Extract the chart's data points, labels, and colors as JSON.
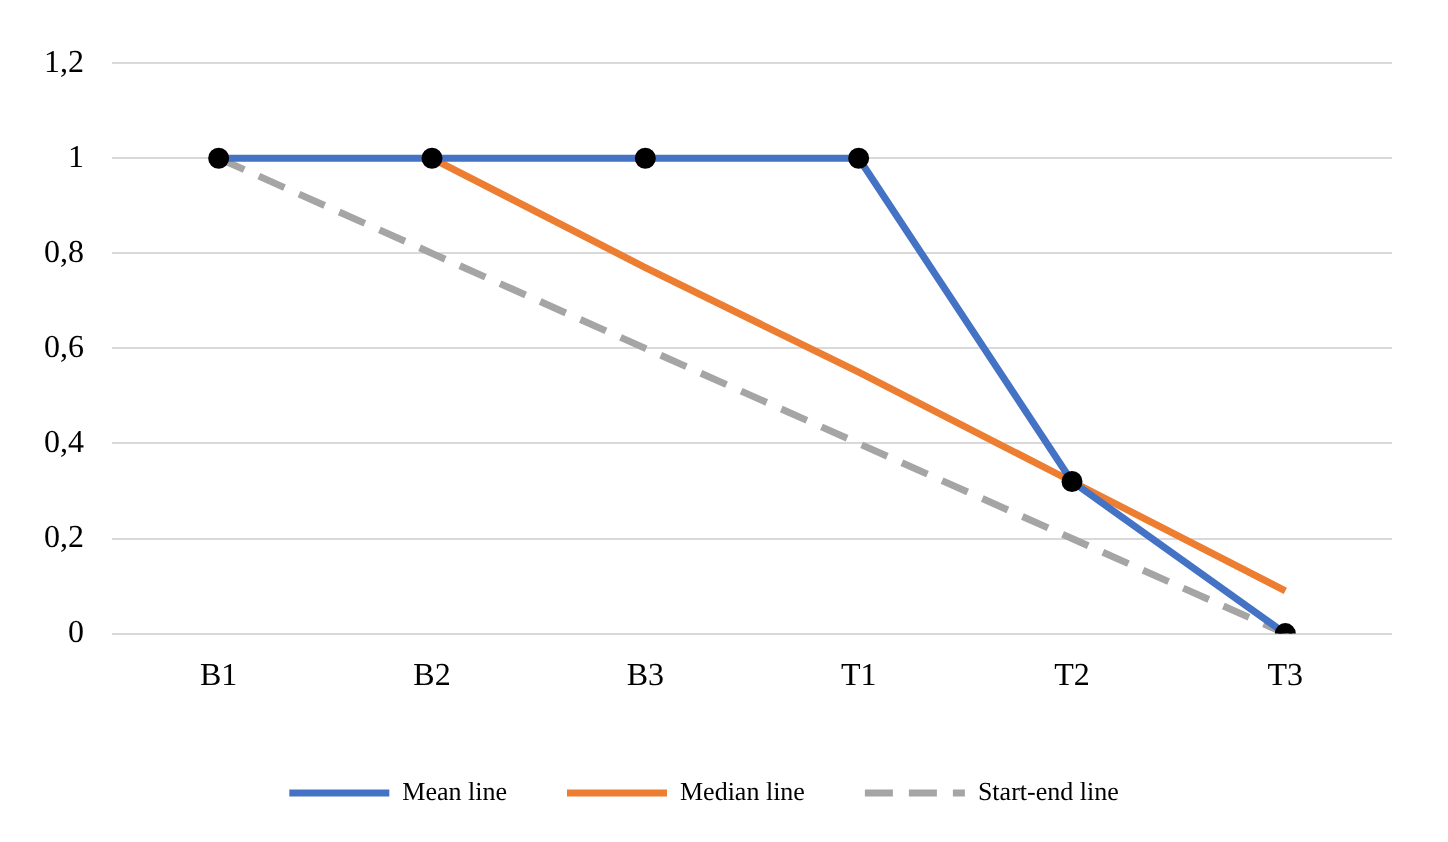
{
  "chart_data": {
    "type": "line",
    "categories": [
      "B1",
      "B2",
      "B3",
      "T1",
      "T2",
      "T3"
    ],
    "series": [
      {
        "name": "Mean line",
        "color": "#4472c4",
        "values": [
          1,
          1,
          1,
          1,
          0.32,
          0
        ],
        "marker": "circle"
      },
      {
        "name": "Median line",
        "color": "#ed7d31",
        "values": [
          null,
          1,
          0.77,
          0.55,
          0.32,
          0.09
        ],
        "marker": "none"
      },
      {
        "name": "Start-end line",
        "color": "#a5a5a5",
        "values": [
          1,
          0.8,
          0.6,
          0.4,
          0.2,
          0
        ],
        "marker": "none",
        "line_style": "dashed"
      }
    ],
    "ylim": [
      0,
      1.2
    ],
    "yticks": [
      {
        "value": 0,
        "label": "0"
      },
      {
        "value": 0.2,
        "label": "0,2"
      },
      {
        "value": 0.4,
        "label": "0,4"
      },
      {
        "value": 0.6,
        "label": "0,6"
      },
      {
        "value": 0.8,
        "label": "0,8"
      },
      {
        "value": 1,
        "label": "1"
      },
      {
        "value": 1.2,
        "label": "1,2"
      }
    ],
    "grid": "y",
    "legend": "bottom"
  }
}
